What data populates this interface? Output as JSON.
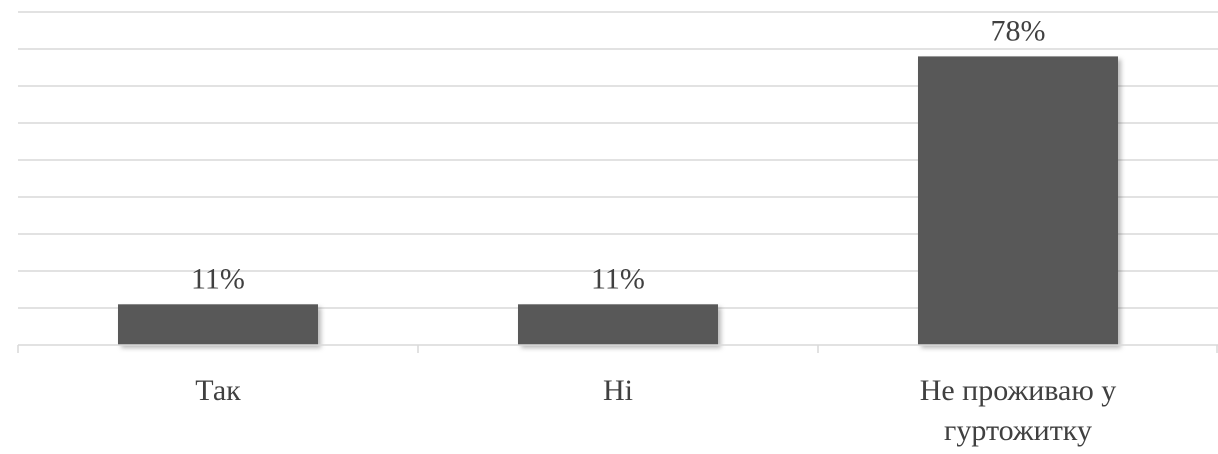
{
  "chart_data": {
    "type": "bar",
    "categories": [
      [
        "Так"
      ],
      [
        "Ні"
      ],
      [
        "Не проживаю у",
        "гуртожитку"
      ]
    ],
    "values": [
      11,
      11,
      78
    ],
    "data_labels": [
      "11%",
      "11%",
      "78%"
    ],
    "ylim": [
      0,
      90
    ],
    "grid": true,
    "bar_color": "#595959",
    "gridline_color": "#d9d9d9",
    "text_color": "#404040",
    "title": "",
    "xlabel": "",
    "ylabel": ""
  }
}
